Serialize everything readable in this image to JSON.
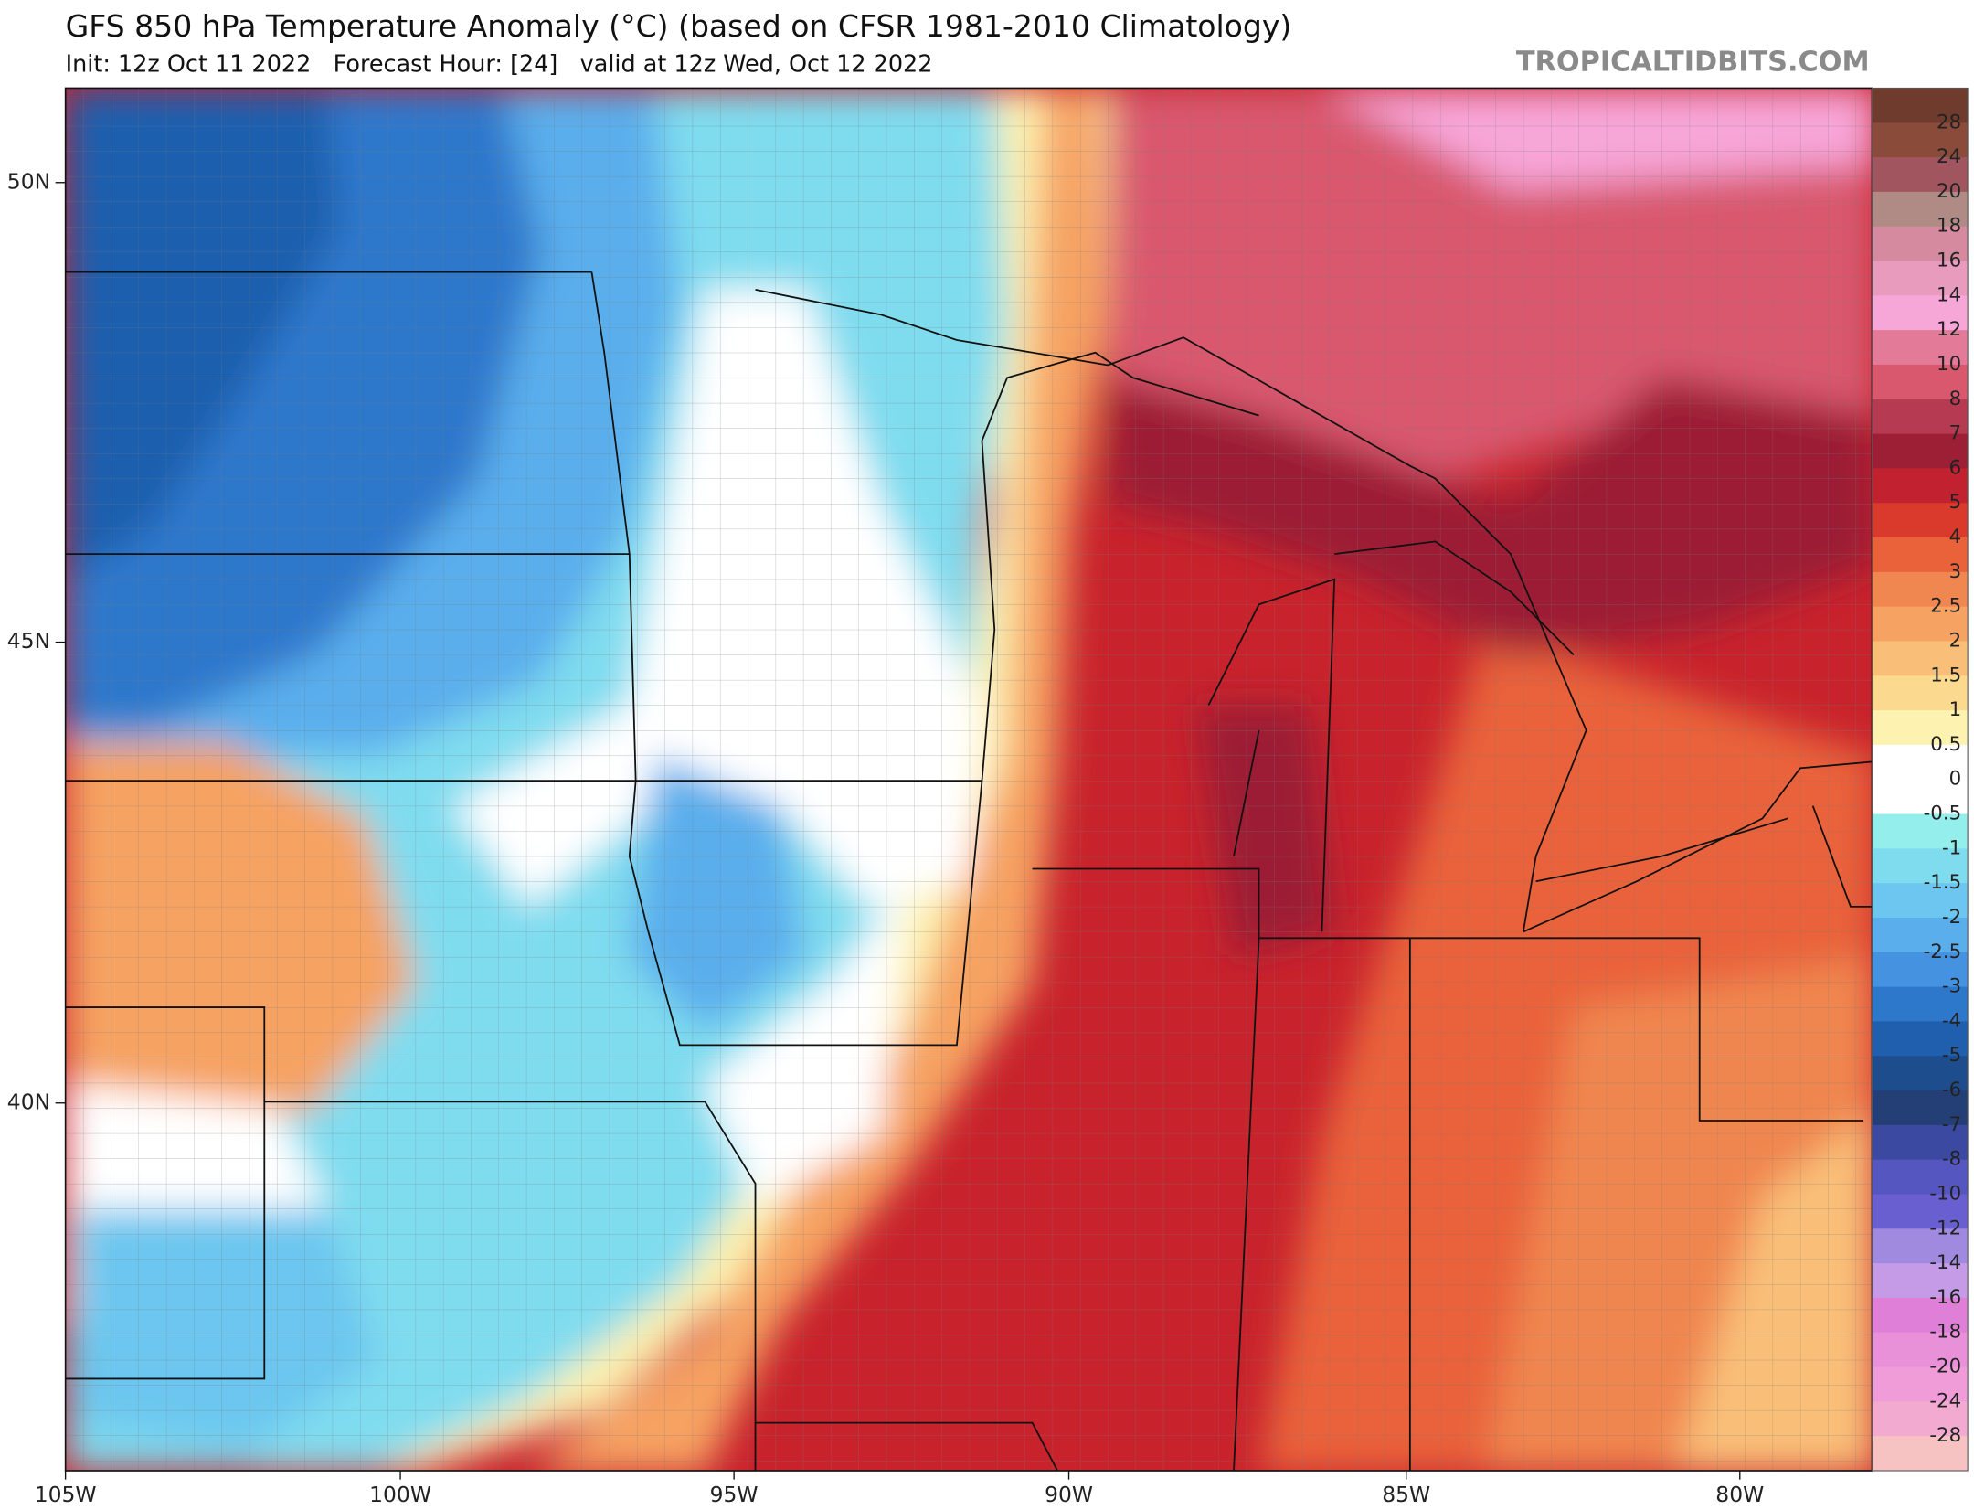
{
  "header": {
    "title": "GFS 850 hPa Temperature Anomaly (°C) (based on CFSR 1981-2010 Climatology)",
    "subtitle": "Init: 12z Oct 11 2022   Forecast Hour: [24]   valid at 12z Wed, Oct 12 2022",
    "brand": "TROPICALTIDBITS.COM"
  },
  "map": {
    "lat_labels": [
      "50N",
      "45N",
      "40N"
    ],
    "lon_labels": [
      "105W",
      "100W",
      "95W",
      "90W",
      "85W",
      "80W"
    ]
  },
  "colorbar": {
    "levels": [
      28,
      24,
      20,
      18,
      16,
      14,
      12,
      10,
      8,
      7,
      6,
      5,
      4,
      3,
      2.5,
      2,
      1.5,
      1,
      0.5,
      0,
      -0.5,
      -1,
      -1.5,
      -2,
      -2.5,
      -3,
      -4,
      -5,
      -6,
      -7,
      -8,
      -10,
      -12,
      -14,
      -16,
      -18,
      -20,
      -24,
      -28
    ],
    "colors": [
      "#6e3b2c",
      "#8a4b3a",
      "#a0555f",
      "#b08a84",
      "#d68aa0",
      "#e99bbd",
      "#f7a6d8",
      "#e27a98",
      "#d9586e",
      "#b63b52",
      "#9c1f35",
      "#c2212f",
      "#d93a2c",
      "#e9623a",
      "#f08650",
      "#f6a262",
      "#f9bf78",
      "#fbd98f",
      "#fdf2b0",
      "#ffffff",
      "#ffffff",
      "#93eeec",
      "#7fdcef",
      "#6cc6ef",
      "#5aaeec",
      "#4593e0",
      "#2e78cc",
      "#1f5fae",
      "#1d4d8c",
      "#243f75",
      "#3b4aa0",
      "#5656c0",
      "#6a5fd0",
      "#a08ae0",
      "#c59ae6",
      "#e07fd8",
      "#e890d8",
      "#ef9cd8",
      "#f3aad0",
      "#f6c2c2"
    ]
  }
}
